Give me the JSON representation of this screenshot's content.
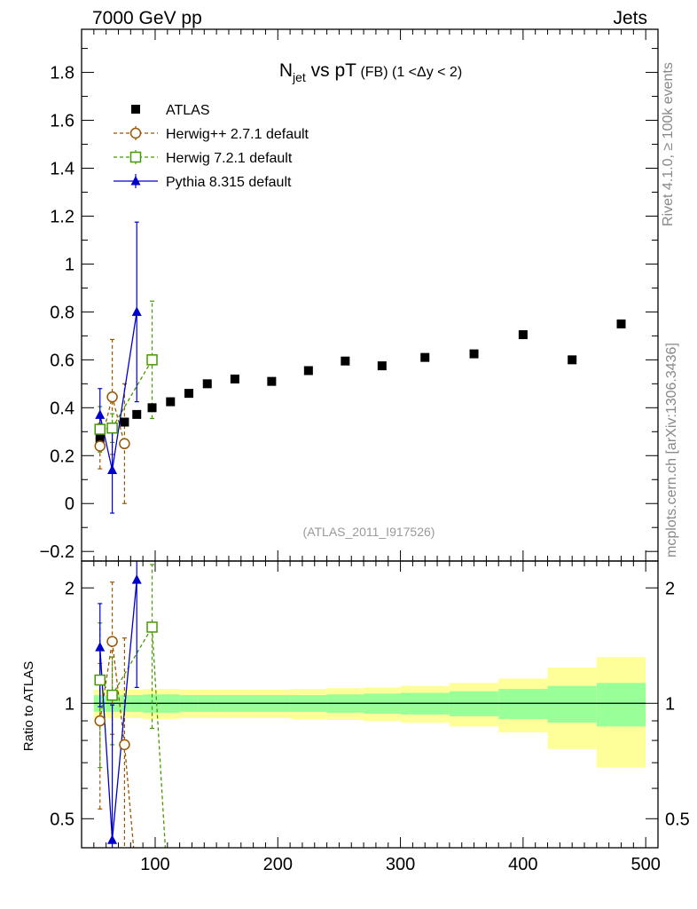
{
  "header": {
    "left": "7000 GeV pp",
    "right": "Jets"
  },
  "side_labels": {
    "rivet": "Rivet 4.1.0, ≥ 100k events",
    "mcplots": "mcplots.cern.ch [arXiv:1306.3436]"
  },
  "chart_data": {
    "type": "scatter",
    "title_main": "N",
    "title_sub": "jet",
    "title_rest": " vs pT",
    "title_small": " (FB) (1 <Δy < 2)",
    "watermark": "(ATLAS_2011_I917526)",
    "ratio_ylabel": "Ratio to ATLAS",
    "ratio_reference": "ATLAS",
    "colors": {
      "atlas": "#000000",
      "herwigpp": "#995500",
      "herwig7": "#449900",
      "pythia": "#0000cc",
      "band_inner": "#99ff99",
      "band_outer": "#ffff99"
    },
    "x_range": [
      40,
      510
    ],
    "y_range_main": [
      -0.24,
      1.98
    ],
    "y_range_ratio": [
      0.42,
      2.35
    ],
    "x_ticks": [
      100,
      200,
      300,
      400,
      500
    ],
    "y_ticks_main": [
      -0.2,
      0,
      0.2,
      0.4,
      0.6,
      0.8,
      1,
      1.2,
      1.4,
      1.6,
      1.8
    ],
    "y_ticks_ratio": [
      0.5,
      1,
      2
    ],
    "legend": [
      {
        "key": "atlas",
        "label": "ATLAS"
      },
      {
        "key": "herwigpp",
        "label": "Herwig++ 2.7.1 default"
      },
      {
        "key": "herwig7",
        "label": "Herwig 7.2.1 default"
      },
      {
        "key": "pythia",
        "label": "Pythia 8.315 default"
      }
    ],
    "atlas": {
      "x": [
        55,
        65,
        75,
        85,
        97.5,
        112.5,
        127.5,
        142.5,
        165,
        195,
        225,
        255,
        285,
        320,
        360,
        400,
        440,
        480
      ],
      "y": [
        0.27,
        0.315,
        0.34,
        0.372,
        0.4,
        0.425,
        0.46,
        0.5,
        0.52,
        0.51,
        0.555,
        0.595,
        0.575,
        0.61,
        0.625,
        0.705,
        0.6,
        0.75
      ],
      "xlow": [
        50,
        60,
        70,
        80,
        90,
        105,
        120,
        135,
        150,
        180,
        210,
        240,
        270,
        300,
        340,
        380,
        420,
        460
      ],
      "xhigh": [
        60,
        70,
        80,
        90,
        105,
        120,
        135,
        150,
        180,
        210,
        240,
        270,
        300,
        340,
        380,
        420,
        460,
        500
      ],
      "band_inner": [
        0.05,
        0.05,
        0.05,
        0.05,
        0.055,
        0.055,
        0.05,
        0.05,
        0.05,
        0.05,
        0.05,
        0.055,
        0.06,
        0.065,
        0.075,
        0.09,
        0.11,
        0.13
      ],
      "band_outer": [
        0.085,
        0.085,
        0.085,
        0.085,
        0.09,
        0.09,
        0.085,
        0.085,
        0.085,
        0.085,
        0.09,
        0.095,
        0.1,
        0.11,
        0.13,
        0.16,
        0.24,
        0.32
      ]
    },
    "herwigpp": {
      "x": [
        55,
        65,
        75
      ],
      "y": [
        0.24,
        0.445,
        0.25
      ],
      "err": [
        0.095,
        0.24,
        0.25
      ],
      "ratio": [
        0.9,
        1.45,
        0.78
      ],
      "ratio_err": [
        0.37,
        0.62,
        0.7
      ],
      "ratio_tail_x": 85
    },
    "herwig7": {
      "x": [
        55,
        65,
        97.5
      ],
      "y": [
        0.31,
        0.315,
        0.6
      ],
      "err": [
        0.095,
        0.06,
        0.245
      ],
      "ratio": [
        1.15,
        1.05,
        1.58
      ],
      "ratio_err": [
        0.47,
        0.27,
        0.72
      ],
      "ratio_tail_x": 110
    },
    "pythia": {
      "x": [
        55,
        65,
        85
      ],
      "y": [
        0.37,
        0.14,
        0.8
      ],
      "err": [
        0.11,
        0.18,
        0.375
      ],
      "ratio": [
        1.4,
        0.44,
        2.1
      ],
      "ratio_err": [
        0.42,
        0.55,
        1.0
      ]
    }
  }
}
